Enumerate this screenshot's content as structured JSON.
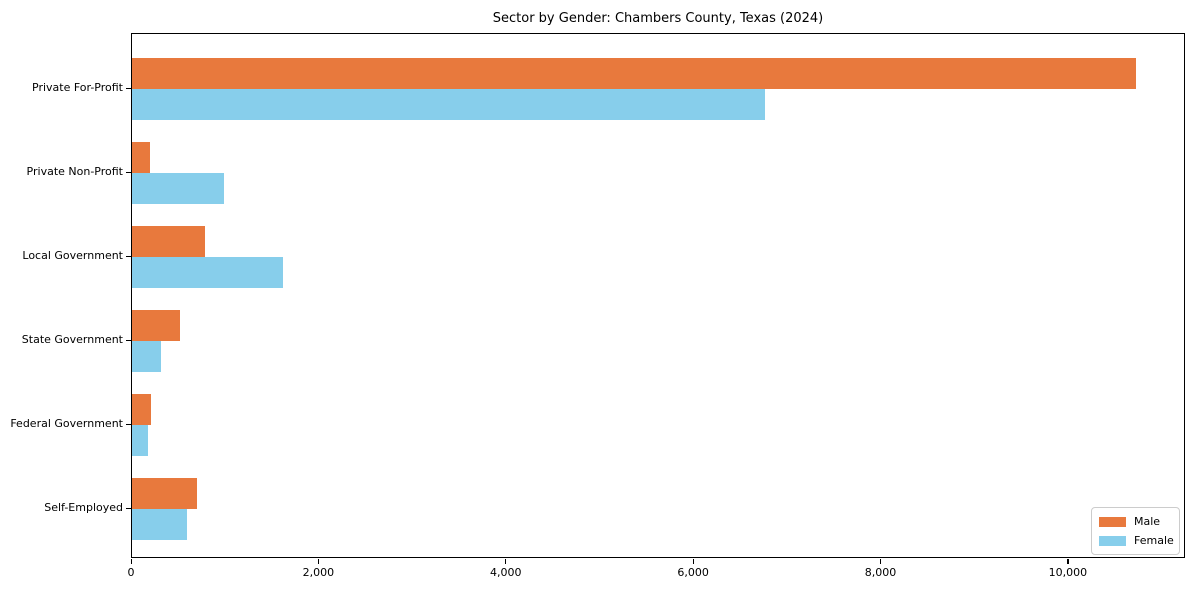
{
  "title": "Sector by Gender: Chambers County, Texas (2024)",
  "chart_data": {
    "type": "bar",
    "orientation": "horizontal",
    "title": "Sector by Gender: Chambers County, Texas (2024)",
    "categories": [
      "Private For-Profit",
      "Private Non-Profit",
      "Local Government",
      "State Government",
      "Federal Government",
      "Self-Employed"
    ],
    "series": [
      {
        "name": "Male",
        "color": "#E8793D",
        "values": [
          10714,
          188,
          784,
          512,
          206,
          693
        ]
      },
      {
        "name": "Female",
        "color": "#87CEEB",
        "values": [
          6757,
          981,
          1609,
          305,
          171,
          582
        ]
      }
    ],
    "xlabel": "",
    "ylabel": "",
    "xlim": [
      0,
      11250
    ],
    "xticks": [
      0,
      2000,
      4000,
      6000,
      8000,
      10000
    ],
    "xtick_labels": [
      "0",
      "2,000",
      "4,000",
      "6,000",
      "8,000",
      "10,000"
    ],
    "grid": false,
    "legend": {
      "position": "lower right",
      "labels": [
        "Male",
        "Female"
      ]
    },
    "colors": {
      "male": "#E8793D",
      "female": "#87CEEB",
      "spine": "#000000",
      "background": "#ffffff"
    }
  }
}
